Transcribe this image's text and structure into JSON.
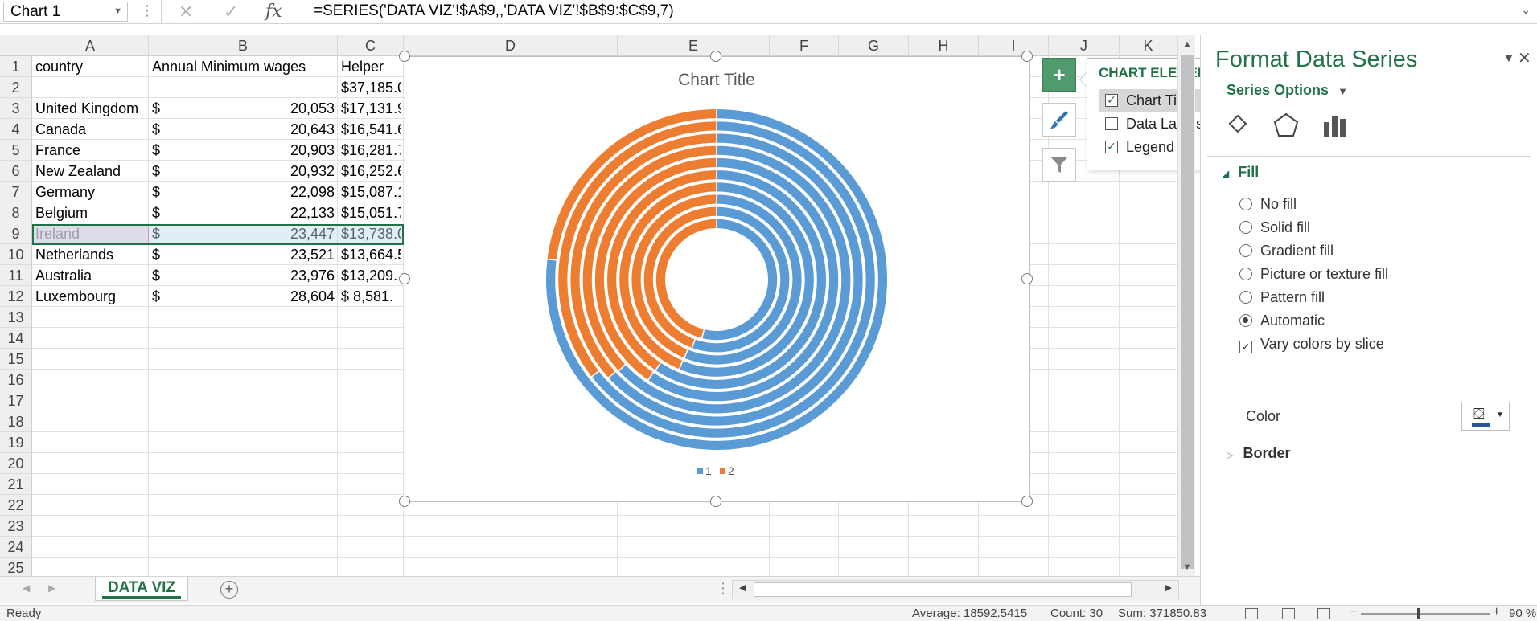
{
  "formula_bar": {
    "name_box": "Chart 1",
    "formula": "=SERIES('DATA VIZ'!$A$9,,'DATA VIZ'!$B$9:$C$9,7)"
  },
  "columns": [
    "A",
    "B",
    "C",
    "D",
    "E",
    "F",
    "G",
    "H",
    "I",
    "J",
    "K"
  ],
  "rows": [
    "1",
    "2",
    "3",
    "4",
    "5",
    "6",
    "7",
    "8",
    "9",
    "10",
    "11",
    "12",
    "13",
    "14",
    "15",
    "16",
    "17",
    "18",
    "19",
    "20",
    "21",
    "22",
    "23",
    "24",
    "25"
  ],
  "sheet": {
    "headers": {
      "a": "country",
      "b": "Annual Minimum wages",
      "c": "Helper"
    },
    "row2_c": "$37,185.0",
    "records": [
      {
        "country": "United Kingdom",
        "currency": "$",
        "wage": "20,053",
        "helper": "$17,131.9"
      },
      {
        "country": "Canada",
        "currency": "$",
        "wage": "20,643",
        "helper": "$16,541.6"
      },
      {
        "country": "France",
        "currency": "$",
        "wage": "20,903",
        "helper": "$16,281.7"
      },
      {
        "country": "New Zealand",
        "currency": "$",
        "wage": "20,932",
        "helper": "$16,252.6"
      },
      {
        "country": "Germany",
        "currency": "$",
        "wage": "22,098",
        "helper": "$15,087.1"
      },
      {
        "country": "Belgium",
        "currency": "$",
        "wage": "22,133",
        "helper": "$15,051.7"
      },
      {
        "country": "Ireland",
        "currency": "$",
        "wage": "23,447",
        "helper": "$13,738.0"
      },
      {
        "country": "Netherlands",
        "currency": "$",
        "wage": "23,521",
        "helper": "$13,664.5"
      },
      {
        "country": "Australia",
        "currency": "$",
        "wage": "23,976",
        "helper": "$13,209."
      },
      {
        "country": "Luxembourg",
        "currency": "$",
        "wage": "28,604",
        "helper": "$  8,581."
      }
    ]
  },
  "chart_data": {
    "type": "doughnut",
    "title": "Chart Title",
    "legend": [
      "1",
      "2"
    ],
    "legend_position": "bottom",
    "colors": {
      "series1": "#5B9BD5",
      "series2": "#ED7D31"
    },
    "rings": [
      {
        "name": "United Kingdom",
        "values": [
          20053,
          17131.9
        ]
      },
      {
        "name": "Canada",
        "values": [
          20643,
          16541.6
        ]
      },
      {
        "name": "France",
        "values": [
          20903,
          16281.7
        ]
      },
      {
        "name": "New Zealand",
        "values": [
          20932,
          16252.6
        ]
      },
      {
        "name": "Germany",
        "values": [
          22098,
          15087.1
        ]
      },
      {
        "name": "Belgium",
        "values": [
          22133,
          15051.7
        ]
      },
      {
        "name": "Ireland",
        "values": [
          23447,
          13738.0
        ]
      },
      {
        "name": "Netherlands",
        "values": [
          23521,
          13664.5
        ]
      },
      {
        "name": "Australia",
        "values": [
          23976,
          13209.0
        ]
      },
      {
        "name": "Luxembourg",
        "values": [
          28604,
          8581.0
        ]
      }
    ]
  },
  "chart_elements": {
    "title": "CHART ELEMENTS",
    "items": [
      {
        "label": "Chart Title",
        "checked": "✓"
      },
      {
        "label": "Data Labels",
        "checked": ""
      },
      {
        "label": "Legend",
        "checked": "✓"
      }
    ]
  },
  "pane": {
    "title": "Format Data Series",
    "series_options": "Series Options",
    "fill_header": "Fill",
    "fill_options": [
      "No fill",
      "Solid fill",
      "Gradient fill",
      "Picture or texture fill",
      "Pattern fill",
      "Automatic"
    ],
    "selected_fill": "Automatic",
    "vary_colors": "Vary colors by slice",
    "color_label": "Color",
    "border_header": "Border"
  },
  "tabs": {
    "active": "DATA VIZ"
  },
  "status": {
    "ready": "Ready",
    "average": "Average: 18592.5415",
    "count": "Count: 30",
    "sum": "Sum: 371850.83",
    "zoom": "90 %"
  }
}
